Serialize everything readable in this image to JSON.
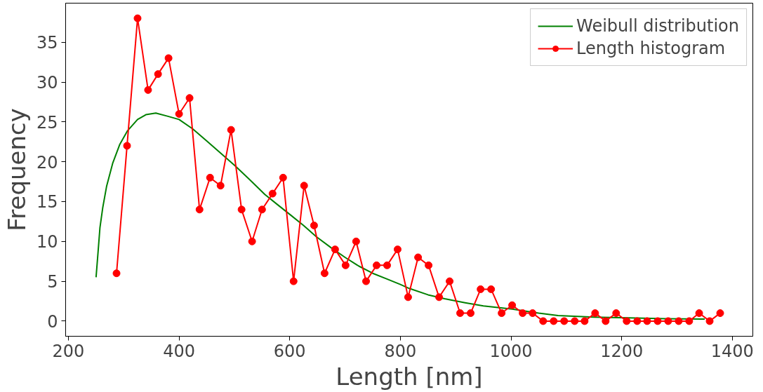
{
  "chart_data": {
    "type": "line",
    "xlabel": "Length [nm]",
    "ylabel": "Frequency",
    "xlim": [
      195,
      1437
    ],
    "ylim": [
      -1.9,
      39.9
    ],
    "xticks": [
      200,
      400,
      600,
      800,
      1000,
      1200,
      1400
    ],
    "yticks": [
      0,
      5,
      10,
      15,
      20,
      25,
      30,
      35
    ],
    "grid": false,
    "legend": "top right",
    "series": [
      {
        "name": "Weibull distribution",
        "color": "#008000",
        "marker": "none",
        "x": [
          250,
          254,
          257,
          262,
          269,
          280,
          293,
          307,
          325,
          340,
          358,
          380,
          400,
          425,
          450,
          475,
          501,
          530,
          555,
          580,
          600,
          625,
          648,
          675,
          700,
          725,
          750,
          775,
          800,
          816,
          850,
          880,
          917,
          950,
          1002,
          1050,
          1085,
          1150,
          1212,
          1280,
          1344,
          1350
        ],
        "values": [
          5.5,
          9,
          11.7,
          14.2,
          16.9,
          19.8,
          22.2,
          23.9,
          25.3,
          25.9,
          26.1,
          25.7,
          25.3,
          24.1,
          22.6,
          21.1,
          19.5,
          17.6,
          15.9,
          14.5,
          13.4,
          12.0,
          10.6,
          9.2,
          8.0,
          6.9,
          6.0,
          5.3,
          4.6,
          4.1,
          3.3,
          2.8,
          2.3,
          1.9,
          1.5,
          1.0,
          0.7,
          0.5,
          0.4,
          0.3,
          0.26,
          0.25
        ]
      },
      {
        "name": "Length histogram",
        "color": "#ff0000",
        "marker": "circle",
        "x": [
          287,
          306,
          325,
          344,
          362,
          381,
          400,
          419,
          437,
          456,
          475,
          494,
          513,
          532,
          550,
          569,
          588,
          607,
          626,
          644,
          663,
          682,
          701,
          720,
          738,
          757,
          776,
          795,
          814,
          832,
          851,
          870,
          889,
          908,
          927,
          945,
          964,
          983,
          1002,
          1021,
          1039,
          1058,
          1077,
          1096,
          1115,
          1133,
          1152,
          1171,
          1190,
          1209,
          1228,
          1246,
          1265,
          1284,
          1303,
          1322,
          1340,
          1359,
          1378
        ],
        "values": [
          6,
          22,
          38,
          29,
          31,
          33,
          26,
          28,
          14,
          18,
          17,
          24,
          14,
          10,
          14,
          16,
          18,
          5,
          17,
          12,
          6,
          9,
          7,
          10,
          5,
          7,
          7,
          9,
          3,
          8,
          7,
          3,
          5,
          1,
          1,
          4,
          4,
          1,
          2,
          1,
          1,
          0,
          0,
          0,
          0,
          0,
          1,
          0,
          1,
          0,
          0,
          0,
          0,
          0,
          0,
          0,
          1,
          0,
          1
        ]
      }
    ]
  }
}
